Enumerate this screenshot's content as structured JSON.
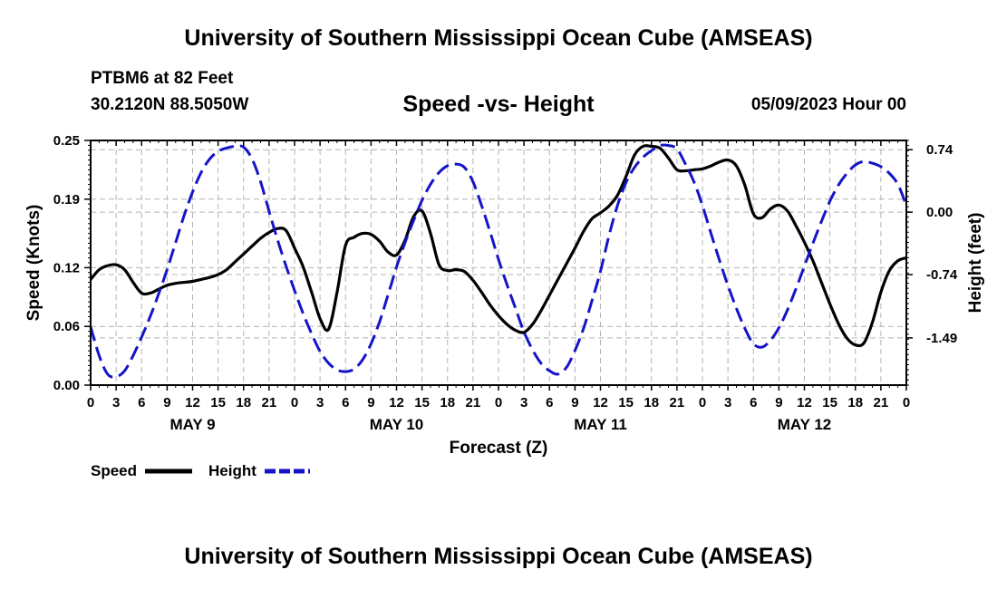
{
  "header": {
    "title": "University of Southern Mississippi Ocean Cube (AMSEAS)",
    "station": "PTBM6 at 82 Feet",
    "coords": "30.2120N  88.5050W",
    "subtitle": "Speed -vs- Height",
    "datetime": "05/09/2023 Hour 00"
  },
  "footer": {
    "title": "University of Southern Mississippi Ocean Cube (AMSEAS)"
  },
  "colors": {
    "speed": "#000000",
    "height": "#1515c8",
    "grid": "#b4b4b4"
  },
  "chart_data": {
    "type": "line",
    "xlabel": "Forecast (Z)",
    "ylabel_left": "Speed (Knots)",
    "ylabel_right": "Height (feet)",
    "x_range_hours": [
      0,
      96
    ],
    "x_tick_step_hours": 3,
    "x_tick_labels": [
      "0",
      "3",
      "6",
      "9",
      "12",
      "15",
      "18",
      "21",
      "0",
      "3",
      "6",
      "9",
      "12",
      "15",
      "18",
      "21",
      "0",
      "3",
      "6",
      "9",
      "12",
      "15",
      "18",
      "21",
      "0",
      "3",
      "6",
      "9",
      "12",
      "15",
      "18",
      "21",
      "0"
    ],
    "day_labels": [
      {
        "label": "MAY 9",
        "hour": 12
      },
      {
        "label": "MAY 10",
        "hour": 36
      },
      {
        "label": "MAY 11",
        "hour": 60
      },
      {
        "label": "MAY 12",
        "hour": 84
      }
    ],
    "left_axis": {
      "ylim": [
        0,
        0.25
      ],
      "ticks": [
        0,
        0.06,
        0.12,
        0.19,
        0.25
      ],
      "tick_labels": [
        "0.00",
        "0.06",
        "0.12",
        "0.19",
        "0.25"
      ]
    },
    "right_axis": {
      "ylim": [
        -2.05,
        0.85
      ],
      "ticks": [
        0.74,
        0,
        -0.74,
        -1.49
      ],
      "tick_labels": [
        "0.74",
        "0.00",
        "-0.74",
        "-1.49"
      ]
    },
    "grid": true,
    "legend": {
      "position": "bottom-left",
      "entries": [
        "Speed",
        "Height"
      ]
    },
    "series": [
      {
        "name": "Speed",
        "axis": "left",
        "style": "solid",
        "x": [
          0,
          1,
          2,
          3,
          4,
          5,
          6,
          7,
          8,
          9,
          10,
          11,
          12,
          13,
          14,
          15,
          16,
          17,
          18,
          19,
          20,
          21,
          22,
          23,
          24,
          25,
          26,
          27,
          28,
          29,
          30,
          31,
          32,
          33,
          34,
          35,
          36,
          37,
          38,
          39,
          40,
          41,
          42,
          43,
          44,
          45,
          46,
          47,
          48,
          49,
          50,
          51,
          52,
          53,
          54,
          55,
          56,
          57,
          58,
          59,
          60,
          61,
          62,
          63,
          64,
          65,
          66,
          67,
          68,
          69,
          70,
          71,
          72,
          73,
          74,
          75,
          76,
          77,
          78,
          79,
          80,
          81,
          82,
          83,
          84,
          85,
          86,
          87,
          88,
          89,
          90,
          91,
          92,
          93,
          94,
          95,
          96
        ],
        "values": [
          0.108,
          0.118,
          0.122,
          0.123,
          0.118,
          0.105,
          0.094,
          0.094,
          0.098,
          0.102,
          0.104,
          0.105,
          0.106,
          0.108,
          0.11,
          0.113,
          0.118,
          0.126,
          0.134,
          0.142,
          0.15,
          0.156,
          0.16,
          0.158,
          0.14,
          0.121,
          0.095,
          0.068,
          0.057,
          0.095,
          0.143,
          0.151,
          0.155,
          0.154,
          0.147,
          0.136,
          0.133,
          0.148,
          0.172,
          0.178,
          0.155,
          0.123,
          0.117,
          0.118,
          0.116,
          0.107,
          0.095,
          0.082,
          0.071,
          0.062,
          0.056,
          0.054,
          0.062,
          0.076,
          0.092,
          0.108,
          0.124,
          0.14,
          0.157,
          0.17,
          0.176,
          0.183,
          0.194,
          0.213,
          0.235,
          0.244,
          0.244,
          0.242,
          0.232,
          0.22,
          0.219,
          0.22,
          0.221,
          0.224,
          0.228,
          0.23,
          0.224,
          0.204,
          0.175,
          0.171,
          0.18,
          0.184,
          0.178,
          0.163,
          0.146,
          0.127,
          0.105,
          0.083,
          0.063,
          0.048,
          0.041,
          0.043,
          0.064,
          0.095,
          0.117,
          0.127,
          0.13
        ]
      },
      {
        "name": "Height",
        "axis": "right",
        "style": "dashed",
        "x": [
          0,
          1,
          2,
          3,
          4,
          5,
          6,
          7,
          8,
          9,
          10,
          11,
          12,
          13,
          14,
          15,
          16,
          17,
          18,
          19,
          20,
          21,
          22,
          23,
          24,
          25,
          26,
          27,
          28,
          29,
          30,
          31,
          32,
          33,
          34,
          35,
          36,
          37,
          38,
          39,
          40,
          41,
          42,
          43,
          44,
          45,
          46,
          47,
          48,
          49,
          50,
          51,
          52,
          53,
          54,
          55,
          56,
          57,
          58,
          59,
          60,
          61,
          62,
          63,
          64,
          65,
          66,
          67,
          68,
          69,
          70,
          71,
          72,
          73,
          74,
          75,
          76,
          77,
          78,
          79,
          80,
          81,
          82,
          83,
          84,
          85,
          86,
          87,
          88,
          89,
          90,
          91,
          92,
          93,
          94,
          95,
          96
        ],
        "values": [
          -1.36,
          -1.7,
          -1.92,
          -1.95,
          -1.88,
          -1.7,
          -1.48,
          -1.24,
          -0.97,
          -0.68,
          -0.36,
          -0.04,
          0.24,
          0.47,
          0.63,
          0.72,
          0.76,
          0.78,
          0.77,
          0.63,
          0.36,
          0.01,
          -0.33,
          -0.64,
          -0.93,
          -1.2,
          -1.44,
          -1.65,
          -1.79,
          -1.87,
          -1.89,
          -1.86,
          -1.75,
          -1.56,
          -1.3,
          -0.98,
          -0.65,
          -0.36,
          -0.1,
          0.14,
          0.33,
          0.47,
          0.55,
          0.57,
          0.53,
          0.36,
          0.08,
          -0.23,
          -0.56,
          -0.86,
          -1.14,
          -1.42,
          -1.63,
          -1.79,
          -1.88,
          -1.92,
          -1.84,
          -1.64,
          -1.38,
          -1.05,
          -0.7,
          -0.28,
          0.08,
          0.35,
          0.53,
          0.65,
          0.73,
          0.79,
          0.79,
          0.75,
          0.57,
          0.36,
          0.08,
          -0.25,
          -0.57,
          -0.87,
          -1.14,
          -1.38,
          -1.56,
          -1.6,
          -1.52,
          -1.37,
          -1.16,
          -0.91,
          -0.64,
          -0.37,
          -0.11,
          0.13,
          0.32,
          0.46,
          0.56,
          0.6,
          0.58,
          0.54,
          0.46,
          0.33,
          0.08
        ]
      }
    ]
  }
}
